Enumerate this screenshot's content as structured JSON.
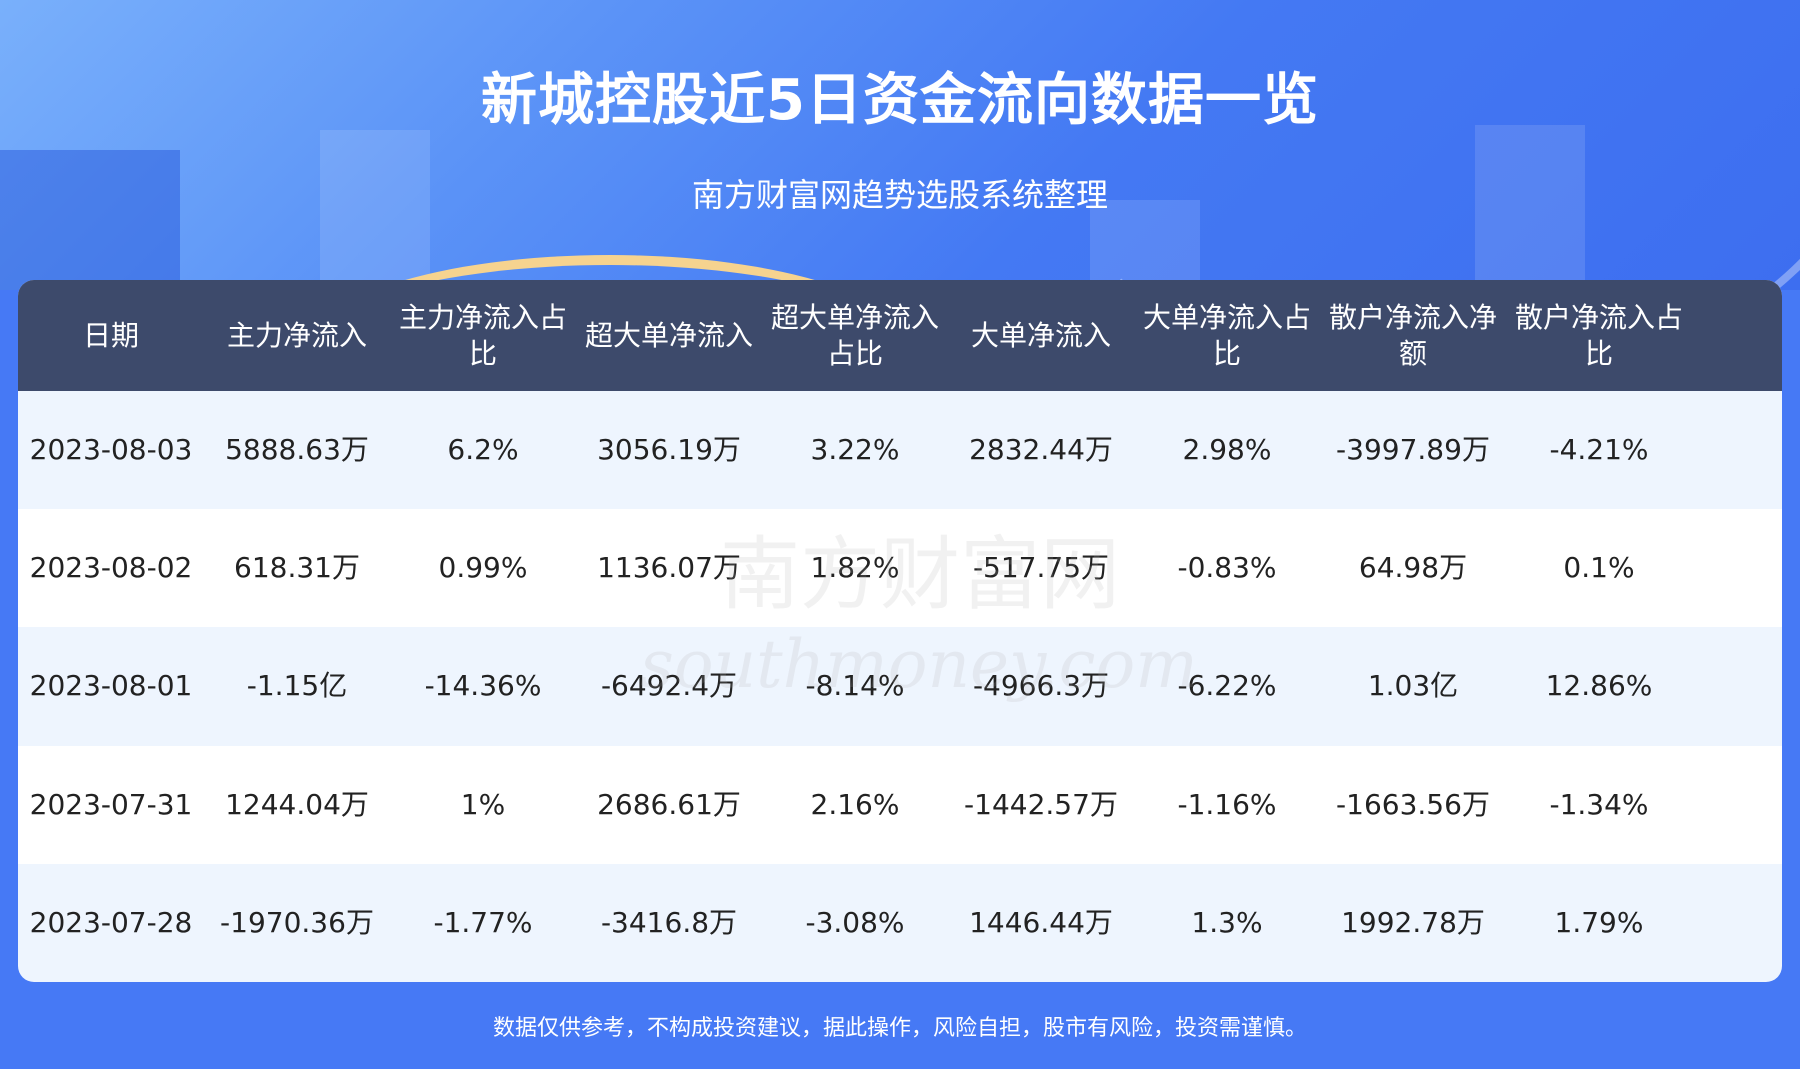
{
  "header": {
    "title": "新城控股近5日资金流向数据一览",
    "subtitle": "南方财富网趋势选股系统整理"
  },
  "table": {
    "columns": [
      "日期",
      "主力净流入",
      "主力净流入占比",
      "超大单净流入",
      "超大单净流入占比",
      "大单净流入",
      "大单净流入占比",
      "散户净流入净额",
      "散户净流入占比"
    ],
    "rows": [
      [
        "2023-08-03",
        "5888.63万",
        "6.2%",
        "3056.19万",
        "3.22%",
        "2832.44万",
        "2.98%",
        "-3997.89万",
        "-4.21%"
      ],
      [
        "2023-08-02",
        "618.31万",
        "0.99%",
        "1136.07万",
        "1.82%",
        "-517.75万",
        "-0.83%",
        "64.98万",
        "0.1%"
      ],
      [
        "2023-08-01",
        "-1.15亿",
        "-14.36%",
        "-6492.4万",
        "-8.14%",
        "-4966.3万",
        "-6.22%",
        "1.03亿",
        "12.86%"
      ],
      [
        "2023-07-31",
        "1244.04万",
        "1%",
        "2686.61万",
        "2.16%",
        "-1442.57万",
        "-1.16%",
        "-1663.56万",
        "-1.34%"
      ],
      [
        "2023-07-28",
        "-1970.36万",
        "-1.77%",
        "-3416.8万",
        "-3.08%",
        "1446.44万",
        "1.3%",
        "1992.78万",
        "1.79%"
      ]
    ]
  },
  "watermark": {
    "cn": "南方财富网",
    "en": "southmoney.com"
  },
  "footer": {
    "disclaimer": "数据仅供参考，不构成投资建议，据此操作，风险自担，股市有风险，投资需谨慎。"
  }
}
